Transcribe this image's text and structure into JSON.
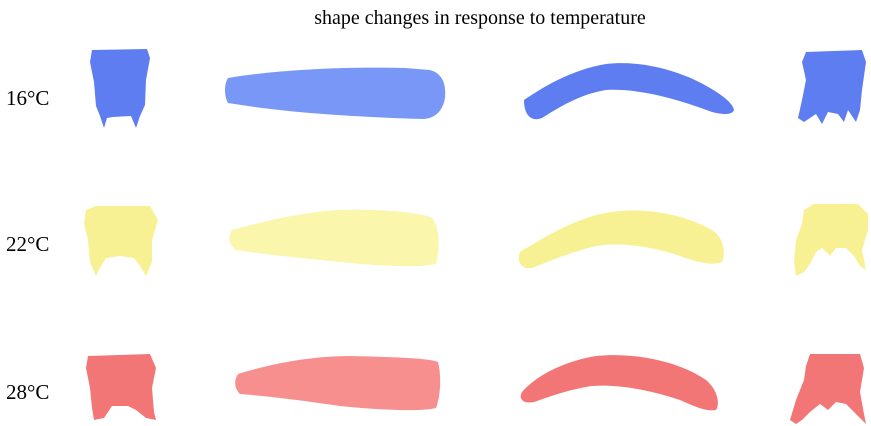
{
  "title": "shape changes in response to temperature",
  "rows": [
    {
      "label": "16°C",
      "color": "#4f72f0",
      "color_light": "#6e8ef5"
    },
    {
      "label": "22°C",
      "color": "#f7f08a",
      "color_light": "#faf5a4"
    },
    {
      "label": "28°C",
      "color": "#f26a6a",
      "color_light": "#f78585"
    }
  ],
  "shape_icons": [
    "front-view-shape",
    "top-view-shape",
    "side-view-shape",
    "back-view-shape"
  ]
}
